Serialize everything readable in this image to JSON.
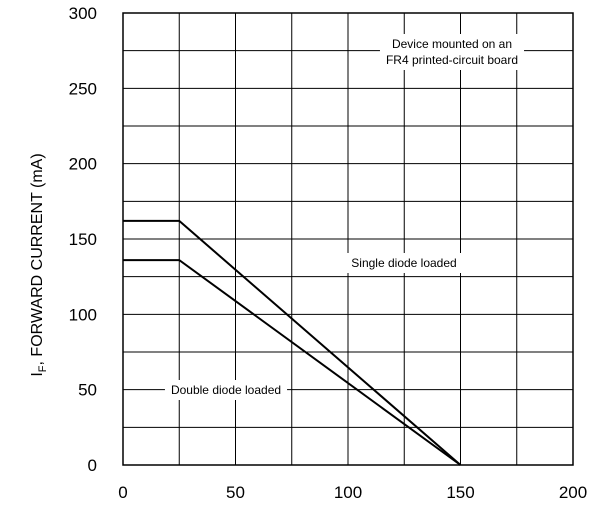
{
  "chart_data": {
    "type": "line",
    "ylabel": {
      "symbol": "I",
      "subscript": "F",
      "text": ", FORWARD CURRENT (mA)"
    },
    "xlabel": "",
    "xlim": [
      0,
      200
    ],
    "ylim": [
      0,
      300
    ],
    "x_ticks": [
      "0",
      "50",
      "100",
      "150",
      "200"
    ],
    "y_ticks": [
      "0",
      "50",
      "100",
      "150",
      "200",
      "250",
      "300"
    ],
    "grid": true,
    "x_grid_step": 25,
    "y_grid_step": 25,
    "series": [
      {
        "x": [
          0,
          25,
          150
        ],
        "y": [
          162,
          162,
          0
        ]
      },
      {
        "x": [
          0,
          25,
          150
        ],
        "y": [
          136,
          136,
          0
        ]
      }
    ],
    "annotations": [
      {
        "lines": [
          "Device mounted on an",
          "FR4 printed-circuit board"
        ]
      },
      {
        "lines": [
          "Single diode loaded"
        ]
      },
      {
        "lines": [
          "Double diode loaded"
        ]
      }
    ]
  }
}
